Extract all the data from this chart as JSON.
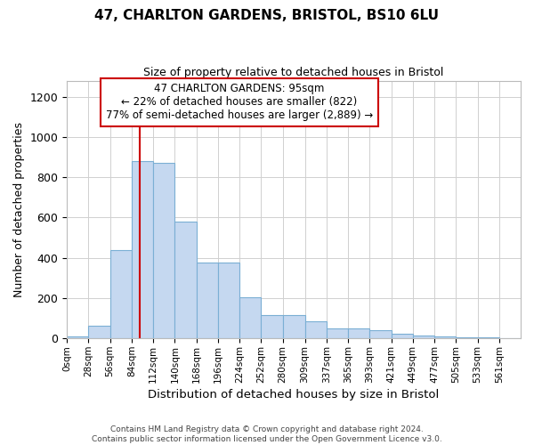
{
  "title_line1": "47, CHARLTON GARDENS, BRISTOL, BS10 6LU",
  "title_line2": "Size of property relative to detached houses in Bristol",
  "xlabel": "Distribution of detached houses by size in Bristol",
  "ylabel": "Number of detached properties",
  "footer_line1": "Contains HM Land Registry data © Crown copyright and database right 2024.",
  "footer_line2": "Contains public sector information licensed under the Open Government Licence v3.0.",
  "annotation_line1": "47 CHARLTON GARDENS: 95sqm",
  "annotation_line2": "← 22% of detached houses are smaller (822)",
  "annotation_line3": "77% of semi-detached houses are larger (2,889) →",
  "property_size": 95,
  "bin_edges": [
    0,
    28,
    56,
    84,
    112,
    140,
    168,
    196,
    224,
    252,
    280,
    309,
    337,
    365,
    393,
    421,
    449,
    477,
    505,
    533,
    561,
    589
  ],
  "bin_labels": [
    "0sqm",
    "28sqm",
    "56sqm",
    "84sqm",
    "112sqm",
    "140sqm",
    "168sqm",
    "196sqm",
    "224sqm",
    "252sqm",
    "280sqm",
    "309sqm",
    "337sqm",
    "365sqm",
    "393sqm",
    "421sqm",
    "449sqm",
    "477sqm",
    "505sqm",
    "533sqm",
    "561sqm"
  ],
  "bar_values": [
    12,
    65,
    440,
    880,
    870,
    580,
    375,
    375,
    205,
    115,
    115,
    85,
    52,
    50,
    42,
    22,
    15,
    10,
    5,
    5,
    3
  ],
  "bar_color": "#c5d8f0",
  "bar_edge_color": "#7bafd4",
  "red_line_color": "#cc0000",
  "annotation_box_edge_color": "#cc0000",
  "grid_color": "#d0d0d0",
  "ylim": [
    0,
    1280
  ],
  "yticks": [
    0,
    200,
    400,
    600,
    800,
    1000,
    1200
  ],
  "background_color": "#ffffff"
}
